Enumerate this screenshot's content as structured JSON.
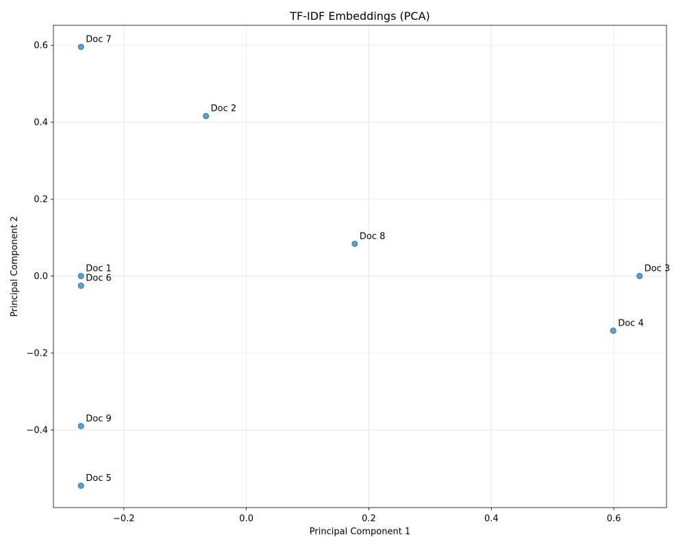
{
  "chart_data": {
    "type": "scatter",
    "title": "TF-IDF Embeddings (PCA)",
    "xlabel": "Principal Component 1",
    "ylabel": "Principal Component 2",
    "xlim": [
      -0.315,
      0.686
    ],
    "ylim": [
      -0.602,
      0.652
    ],
    "xticks": [
      -0.2,
      0.0,
      0.2,
      0.4,
      0.6
    ],
    "xtick_labels": [
      "−0.2",
      "0.0",
      "0.2",
      "0.4",
      "0.6"
    ],
    "yticks": [
      -0.4,
      -0.2,
      0.0,
      0.2,
      0.4,
      0.6
    ],
    "ytick_labels": [
      "−0.4",
      "−0.2",
      "0.0",
      "0.2",
      "0.4",
      "0.6"
    ],
    "grid": true,
    "marker_color": "#1f77b4",
    "points": [
      {
        "label": "Doc 1",
        "x": -0.27,
        "y": 0.0
      },
      {
        "label": "Doc 2",
        "x": -0.066,
        "y": 0.416
      },
      {
        "label": "Doc 3",
        "x": 0.642,
        "y": 0.0
      },
      {
        "label": "Doc 4",
        "x": 0.599,
        "y": -0.142
      },
      {
        "label": "Doc 5",
        "x": -0.27,
        "y": -0.545
      },
      {
        "label": "Doc 6",
        "x": -0.27,
        "y": -0.025
      },
      {
        "label": "Doc 7",
        "x": -0.27,
        "y": 0.596
      },
      {
        "label": "Doc 8",
        "x": 0.177,
        "y": 0.084
      },
      {
        "label": "Doc 9",
        "x": -0.27,
        "y": -0.39
      }
    ]
  }
}
